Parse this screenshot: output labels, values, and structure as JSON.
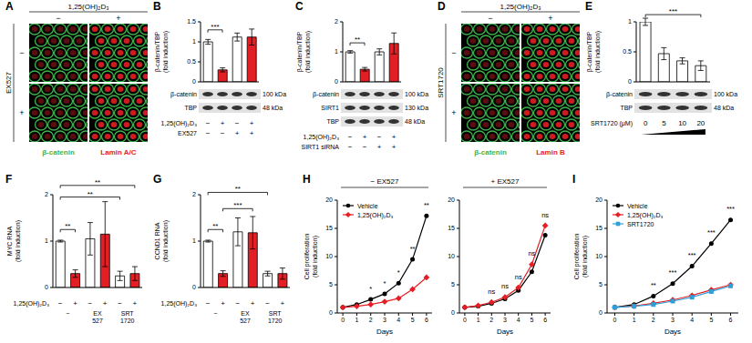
{
  "images": [
    {
      "panel": "A",
      "column_header": "1,25(OH)₂D₃",
      "columns": [
        "−",
        "+"
      ],
      "row_header": "EX527",
      "rows": [
        "−",
        "+"
      ],
      "stains": [
        {
          "name": "β-catenin",
          "color": "#3cb44b"
        },
        {
          "name": "Lamin A/C",
          "color": "#e31e24"
        }
      ]
    },
    {
      "panel": "D",
      "column_header": "1,25(OH)₂D₃",
      "columns": [
        "−",
        "+"
      ],
      "row_header": "SRT1720",
      "rows": [
        "−",
        "+"
      ],
      "stains": [
        {
          "name": "β-catenin",
          "color": "#3cb44b"
        },
        {
          "name": "Lamin B",
          "color": "#e31e24"
        }
      ]
    }
  ],
  "chart_data": [
    {
      "panel": "B",
      "type": "bar",
      "ylabel": "β-catenin/TBP (fold induction)",
      "categories": [
        null,
        null,
        null,
        null
      ],
      "values": [
        1,
        0.3,
        1.12,
        1.12
      ],
      "errors": [
        0.06,
        0.05,
        0.1,
        0.2
      ],
      "colors": [
        "#ffffff",
        "#e31e24",
        "#ffffff",
        "#e31e24"
      ],
      "ylim": [
        0,
        1.5
      ],
      "yticks": [
        0,
        0.5,
        1,
        1.5
      ],
      "annotations": [
        {
          "bars": [
            0,
            1
          ],
          "y": 1.3,
          "text": "***"
        }
      ],
      "blot": [
        {
          "label": "β-catenin",
          "size": "100 kDa"
        },
        {
          "label": "TBP",
          "size": "48 kDa"
        }
      ],
      "conditions": [
        {
          "label": "1,25(OH)₂D₃",
          "marks": [
            "−",
            "+",
            "−",
            "+"
          ]
        },
        {
          "label": "EX527",
          "marks": [
            "−",
            "−",
            "+",
            "+"
          ]
        }
      ]
    },
    {
      "panel": "C",
      "type": "bar",
      "ylabel": "β-catenin/TBP (fold induction)",
      "categories": [
        null,
        null,
        null,
        null
      ],
      "values": [
        1,
        0.42,
        1,
        1.28
      ],
      "errors": [
        0.04,
        0.06,
        0.1,
        0.35
      ],
      "colors": [
        "#ffffff",
        "#e31e24",
        "#ffffff",
        "#e31e24"
      ],
      "ylim": [
        0,
        2
      ],
      "yticks": [
        0,
        1,
        2
      ],
      "annotations": [
        {
          "bars": [
            0,
            1
          ],
          "y": 1.3,
          "text": "**"
        }
      ],
      "blot": [
        {
          "label": "β-catenin",
          "size": "100 kDa"
        },
        {
          "label": "SIRT1",
          "size": "130 kDa"
        },
        {
          "label": "TBP",
          "size": "48 kDa"
        }
      ],
      "conditions": [
        {
          "label": "1,25(OH)₂D₃",
          "marks": [
            "−",
            "+",
            "−",
            "+"
          ]
        },
        {
          "label": "SIRT1 siRNA",
          "marks": [
            "−",
            "−",
            "+",
            "+"
          ]
        }
      ]
    },
    {
      "panel": "E",
      "type": "bar",
      "ylabel": "β-catenin/TBP (fold induction)",
      "categories": [
        null,
        null,
        null,
        null
      ],
      "values": [
        1,
        0.47,
        0.35,
        0.27
      ],
      "errors": [
        0.06,
        0.1,
        0.05,
        0.08
      ],
      "colors": [
        "#ffffff",
        "#ffffff",
        "#ffffff",
        "#ffffff"
      ],
      "ylim": [
        0,
        1
      ],
      "yticks": [
        0,
        0.5,
        1
      ],
      "annotations": [
        {
          "bars": [
            0,
            3
          ],
          "y": 1.12,
          "text": "***"
        }
      ],
      "blot": [
        {
          "label": "β-catenin",
          "size": "100 kDa"
        },
        {
          "label": "TBP",
          "size": "48 kDa"
        }
      ],
      "conditions": [
        {
          "label": "SRT1720 (μM)",
          "marks": [
            "0",
            "5",
            "10",
            "20"
          ]
        }
      ]
    },
    {
      "panel": "F",
      "type": "bar",
      "ylabel": "MYC RNA (fold induction)",
      "categories": [
        null,
        null,
        null,
        null,
        null,
        null
      ],
      "values": [
        1,
        0.3,
        1.05,
        1.15,
        0.25,
        0.3
      ],
      "errors": [
        0.02,
        0.08,
        0.35,
        0.7,
        0.1,
        0.15
      ],
      "colors": [
        "#ffffff",
        "#e31e24",
        "#ffffff",
        "#e31e24",
        "#ffffff",
        "#e31e24"
      ],
      "ylim": [
        0,
        2
      ],
      "yticks": [
        0,
        1,
        2
      ],
      "annotations": [
        {
          "bars": [
            0,
            1
          ],
          "y": 1.25,
          "text": "**"
        },
        {
          "bars": [
            0,
            4
          ],
          "y": 1.95,
          "text": "**"
        },
        {
          "bars": [
            0,
            5
          ],
          "y": 2.2,
          "text": "**"
        }
      ],
      "conditions": [
        {
          "label": "1,25(OH)₂D₃",
          "marks": [
            "−",
            "+",
            "−",
            "+",
            "−",
            "+"
          ]
        }
      ],
      "groups": [
        {
          "label": "−",
          "bars": [
            0,
            1
          ]
        },
        {
          "label": "EX 527",
          "bars": [
            2,
            3
          ]
        },
        {
          "label": "SRT 1720",
          "bars": [
            4,
            5
          ]
        }
      ]
    },
    {
      "panel": "G",
      "type": "bar",
      "ylabel": "CCND1 RNA (fold induction)",
      "categories": [
        null,
        null,
        null,
        null,
        null,
        null
      ],
      "values": [
        1,
        0.3,
        1.2,
        1.18,
        0.3,
        0.3
      ],
      "errors": [
        0.02,
        0.06,
        0.3,
        0.35,
        0.05,
        0.12
      ],
      "colors": [
        "#ffffff",
        "#e31e24",
        "#ffffff",
        "#e31e24",
        "#ffffff",
        "#e31e24"
      ],
      "ylim": [
        0,
        2
      ],
      "yticks": [
        0,
        1,
        2
      ],
      "annotations": [
        {
          "bars": [
            0,
            1
          ],
          "y": 1.25,
          "text": "**"
        },
        {
          "bars": [
            1,
            3
          ],
          "y": 1.7,
          "text": "***"
        },
        {
          "bars": [
            0,
            4
          ],
          "y": 2.05,
          "text": "**"
        }
      ],
      "conditions": [
        {
          "label": "1,25(OH)₂D₃",
          "marks": [
            "−",
            "+",
            "−",
            "+",
            "−",
            "+"
          ]
        }
      ],
      "groups": [
        {
          "label": "−",
          "bars": [
            0,
            1
          ]
        },
        {
          "label": "EX 527",
          "bars": [
            2,
            3
          ]
        },
        {
          "label": "SRT 1720",
          "bars": [
            4,
            5
          ]
        }
      ]
    },
    {
      "panel": "H",
      "type": "line",
      "title": "− EX527",
      "ylabel": "Cell proliferation (fold induction)",
      "xlabel": "Days",
      "x": [
        0,
        1,
        2,
        3,
        4,
        5,
        6
      ],
      "xlim": [
        -0.4,
        6.4
      ],
      "xticks": [
        0,
        1,
        2,
        3,
        4,
        5,
        6
      ],
      "ylim": [
        0,
        20
      ],
      "yticks": [
        0,
        5,
        10,
        15,
        20
      ],
      "legend": "upper left",
      "series": [
        {
          "name": "Vehicle",
          "color": "#000000",
          "marker": "circle",
          "values": [
            1,
            1.5,
            2.4,
            3.4,
            5.3,
            9.5,
            17.2
          ]
        },
        {
          "name": "1,25(OH)₂D₃",
          "color": "#e31e24",
          "marker": "diamond",
          "values": [
            1,
            1.2,
            1.5,
            2,
            2.6,
            4.2,
            6.3
          ]
        }
      ],
      "annotations": [
        {
          "x": 2,
          "y": 4.4,
          "text": "*"
        },
        {
          "x": 3,
          "y": 5.4,
          "text": "*"
        },
        {
          "x": 4,
          "y": 7.3,
          "text": "*"
        },
        {
          "x": 5,
          "y": 11.5,
          "text": "**"
        },
        {
          "x": 6,
          "y": 19.2,
          "text": "**"
        }
      ]
    },
    {
      "type": "line",
      "title": "+ EX527",
      "xlabel": "Days",
      "x": [
        0,
        1,
        2,
        3,
        4,
        5,
        6
      ],
      "xlim": [
        -0.4,
        6.4
      ],
      "xticks": [
        0,
        1,
        2,
        3,
        4,
        5,
        6
      ],
      "ylim": [
        0,
        20
      ],
      "yticks": [
        0,
        5,
        10,
        15,
        20
      ],
      "series": [
        {
          "name": "Vehicle",
          "color": "#000000",
          "marker": "circle",
          "values": [
            1,
            1.2,
            1.7,
            2.5,
            4,
            7.3,
            13.8
          ]
        },
        {
          "name": "1,25(OH)₂D₃",
          "color": "#e31e24",
          "marker": "diamond",
          "values": [
            1,
            1.3,
            1.9,
            2.8,
            4.5,
            8.6,
            15.5
          ]
        }
      ],
      "annotations": [
        {
          "x": 2,
          "y": 3.9,
          "text": "ns"
        },
        {
          "x": 3,
          "y": 4.8,
          "text": "ns"
        },
        {
          "x": 4,
          "y": 6.5,
          "text": "ns"
        },
        {
          "x": 5,
          "y": 10.6,
          "text": "ns"
        },
        {
          "x": 6,
          "y": 17.5,
          "text": "ns"
        }
      ]
    },
    {
      "panel": "I",
      "type": "line",
      "ylabel": "Cell proliferation (fold induction)",
      "xlabel": "Days",
      "x": [
        0,
        1,
        2,
        3,
        4,
        5,
        6
      ],
      "xlim": [
        -0.4,
        6.4
      ],
      "xticks": [
        0,
        1,
        2,
        3,
        4,
        5,
        6
      ],
      "ylim": [
        0,
        20
      ],
      "yticks": [
        0,
        5,
        10,
        15,
        20
      ],
      "legend": "upper left",
      "series": [
        {
          "name": "Vehicle",
          "color": "#000000",
          "marker": "circle",
          "values": [
            1,
            1.5,
            3,
            5.2,
            8.3,
            12.3,
            16.5
          ]
        },
        {
          "name": "1,25(OH)₂D₃",
          "color": "#e31e24",
          "marker": "diamond",
          "values": [
            1,
            1.25,
            1.7,
            2.3,
            3.1,
            4.1,
            5
          ]
        },
        {
          "name": "SRT1720",
          "color": "#2f9fd8",
          "marker": "square",
          "values": [
            1,
            1.2,
            1.5,
            2.1,
            2.8,
            3.8,
            4.8
          ]
        }
      ],
      "annotations": [
        {
          "x": 2,
          "y": 5,
          "text": "**"
        },
        {
          "x": 3,
          "y": 7.2,
          "text": "***"
        },
        {
          "x": 4,
          "y": 10.3,
          "text": "***"
        },
        {
          "x": 5,
          "y": 14.3,
          "text": "***"
        },
        {
          "x": 6,
          "y": 18.5,
          "text": "***"
        }
      ]
    }
  ]
}
